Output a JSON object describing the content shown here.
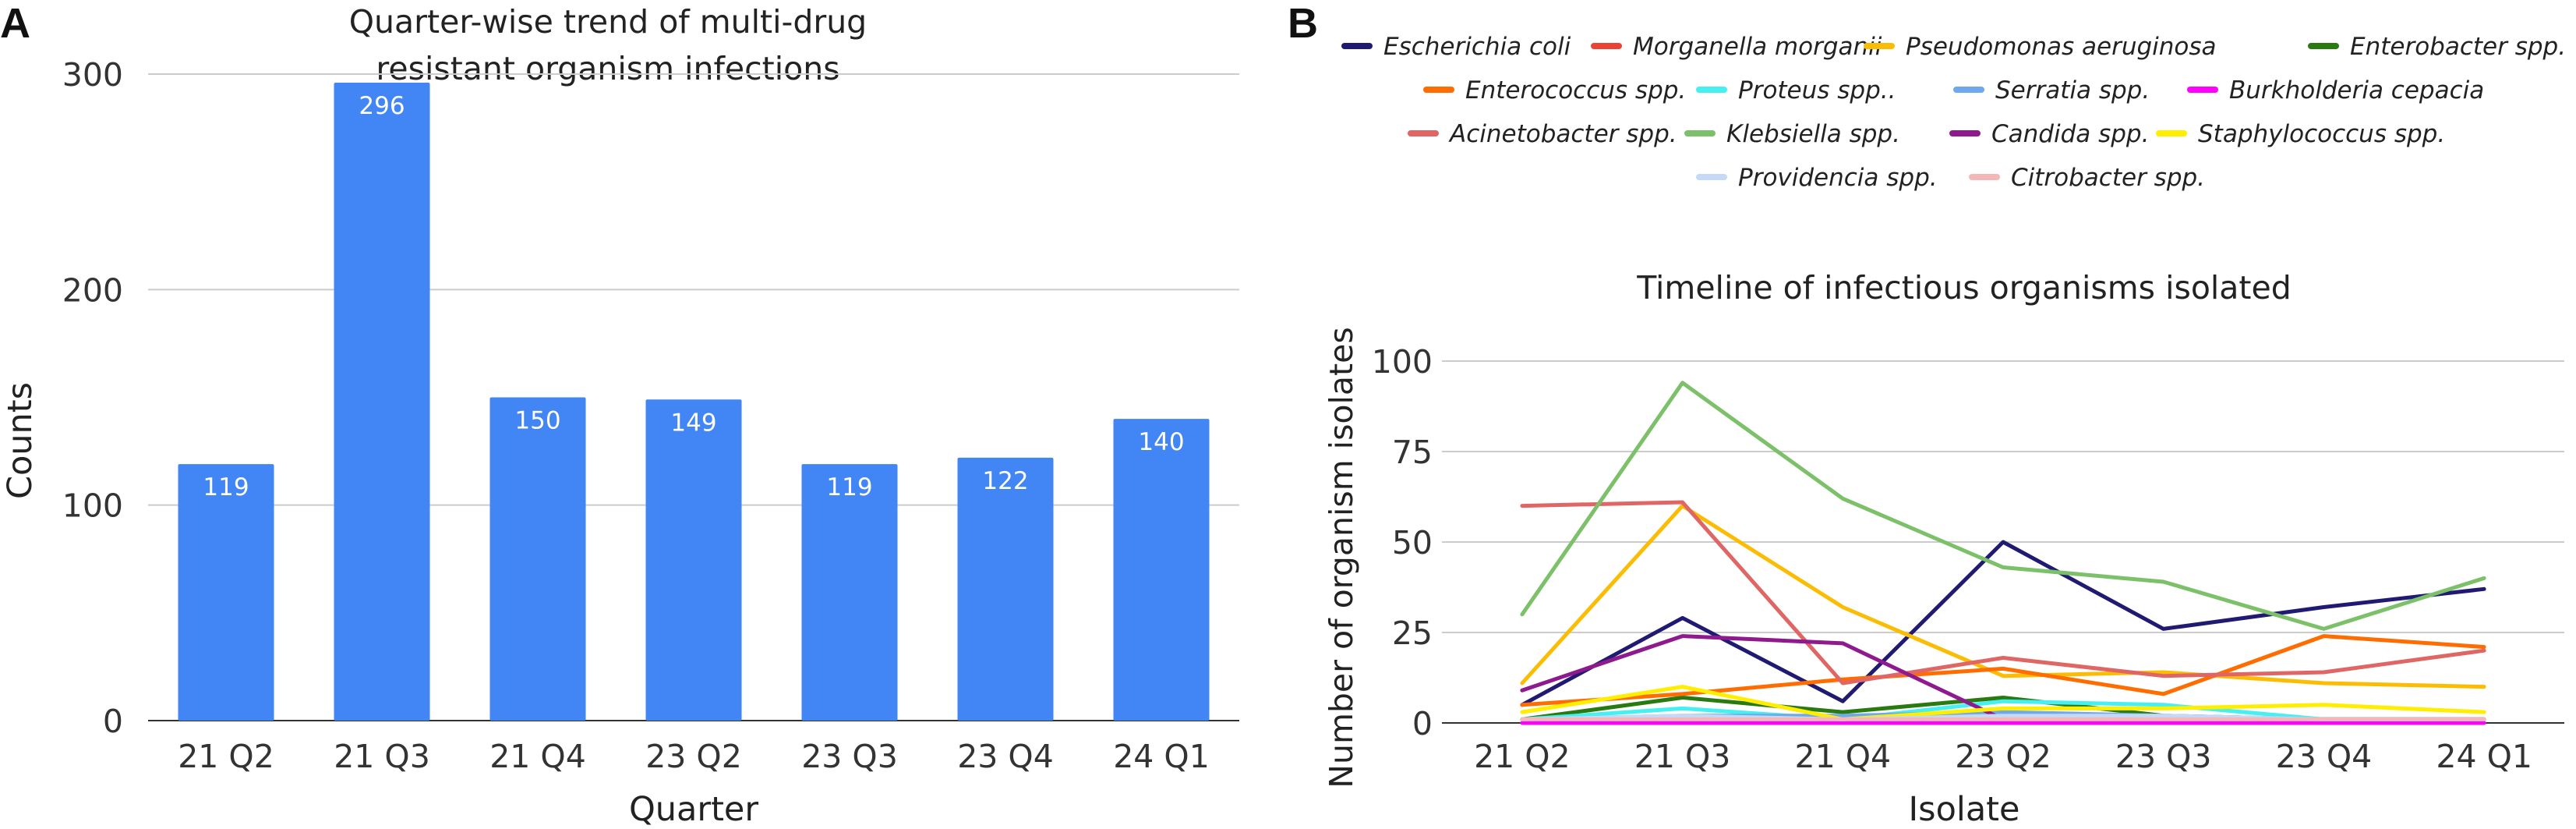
{
  "panels": {
    "a_label": "A",
    "b_label": "B"
  },
  "chart_data": [
    {
      "type": "bar",
      "title": "Quarter-wise trend of multi-drug resistant organism infections",
      "title_lines": [
        "Quarter-wise trend of multi-drug",
        "resistant organism infections"
      ],
      "xlabel": "Quarter",
      "ylabel": "Counts",
      "categories": [
        "21 Q2",
        "21 Q3",
        "21 Q4",
        "23 Q2",
        "23 Q3",
        "23 Q4",
        "24 Q1"
      ],
      "values": [
        119,
        296,
        150,
        149,
        119,
        122,
        140
      ],
      "data_labels": [
        "119",
        "296",
        "150",
        "149",
        "119",
        "122",
        "140"
      ],
      "ylim": [
        0,
        300
      ],
      "yticks": [
        "0",
        "100",
        "200",
        "300"
      ],
      "grid": true,
      "bar_color": "#4285f4"
    },
    {
      "type": "line",
      "title": "Timeline of infectious organisms isolated",
      "xlabel": "Isolate",
      "ylabel": "Number of organism isolates",
      "categories": [
        "21 Q2",
        "21 Q3",
        "21 Q4",
        "23 Q2",
        "23 Q3",
        "23 Q4",
        "24 Q1"
      ],
      "ylim": [
        0,
        100
      ],
      "yticks": [
        "0",
        "25",
        "50",
        "75",
        "100"
      ],
      "grid": true,
      "legend_position": "top",
      "series": [
        {
          "name": "Escherichia coli",
          "color": "#201a72",
          "values": [
            5,
            29,
            6,
            50,
            26,
            32,
            37
          ]
        },
        {
          "name": "Morganella morganii",
          "color": "#ea4335",
          "values": [
            1,
            1,
            1,
            1,
            1,
            1,
            1
          ]
        },
        {
          "name": "Pseudomonas aeruginosa",
          "color": "#fbbc04",
          "values": [
            11,
            60,
            32,
            13,
            14,
            11,
            10
          ]
        },
        {
          "name": "Enterobacter spp.",
          "color": "#2a7a12",
          "values": [
            1,
            7,
            3,
            7,
            2,
            1,
            1
          ]
        },
        {
          "name": "Enterococcus spp.",
          "color": "#ff6d01",
          "values": [
            5,
            8,
            12,
            15,
            8,
            24,
            21
          ]
        },
        {
          "name": "Proteus spp..",
          "color": "#46f0f0",
          "values": [
            1,
            4,
            1,
            6,
            5,
            1,
            1
          ]
        },
        {
          "name": "Serratia spp.",
          "color": "#6fa8ec",
          "values": [
            1,
            2,
            2,
            3,
            2,
            1,
            1
          ]
        },
        {
          "name": "Burkholderia cepacia",
          "color": "#ff00ff",
          "values": [
            0,
            0,
            0,
            0,
            0,
            0,
            0
          ]
        },
        {
          "name": "Acinetobacter spp.",
          "color": "#e06666",
          "values": [
            60,
            61,
            11,
            18,
            13,
            14,
            20
          ]
        },
        {
          "name": "Klebsiella spp.",
          "color": "#7cc16a",
          "values": [
            30,
            94,
            62,
            43,
            39,
            26,
            40
          ]
        },
        {
          "name": "Candida spp.",
          "color": "#8e1a8e",
          "values": [
            9,
            24,
            22,
            1,
            1,
            1,
            1
          ]
        },
        {
          "name": "Staphylococcus spp.",
          "color": "#ffee00",
          "values": [
            3,
            10,
            1,
            4,
            4,
            5,
            3
          ]
        },
        {
          "name": "Providencia spp.",
          "color": "#c5d8f5",
          "values": [
            1,
            2,
            1,
            2,
            2,
            1,
            1
          ]
        },
        {
          "name": "Citrobacter spp.",
          "color": "#f4b6b6",
          "values": [
            1,
            1,
            1,
            1,
            1,
            1,
            1
          ]
        }
      ]
    }
  ]
}
